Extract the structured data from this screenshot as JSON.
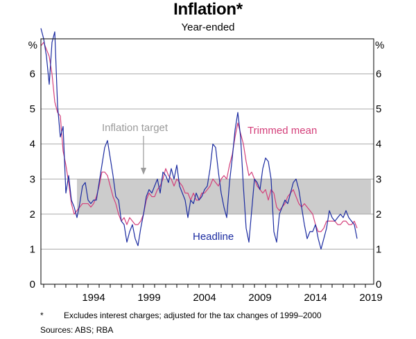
{
  "header": {
    "title": "Inflation*",
    "subtitle": "Year-ended"
  },
  "footer": {
    "footnote_marker": "*",
    "footnote_text": "Excludes interest charges; adjusted for the tax changes of 1999–2000",
    "sources": "Sources:  ABS; RBA"
  },
  "chart_data": {
    "type": "line",
    "title": "Inflation*",
    "subtitle": "Year-ended",
    "ylabel": "%",
    "ylim": [
      0,
      7
    ],
    "yticks": [
      0,
      1,
      2,
      3,
      4,
      5,
      6
    ],
    "xlim": [
      1989.75,
      2019.75
    ],
    "xticks": [
      1994,
      1999,
      2004,
      2009,
      2014,
      2019
    ],
    "grid": true,
    "target_band": {
      "low": 2,
      "high": 3,
      "start": 1993.0,
      "label": "Inflation target",
      "arrow_x": 1999.0
    },
    "annotations": {
      "trimmed_mean": "Trimmed mean",
      "headline": "Headline"
    },
    "colors": {
      "headline": "#1a2aa0",
      "trimmed": "#d43f7a",
      "band": "#cccccc",
      "grid": "#aaaaaa",
      "target_label": "#9a9a9a"
    },
    "series": [
      {
        "name": "Headline",
        "points": [
          [
            1989.75,
            7.3
          ],
          [
            1990.0,
            7.0
          ],
          [
            1990.25,
            6.5
          ],
          [
            1990.5,
            5.7
          ],
          [
            1990.75,
            6.9
          ],
          [
            1991.0,
            7.2
          ],
          [
            1991.25,
            5.1
          ],
          [
            1991.5,
            4.2
          ],
          [
            1991.75,
            4.5
          ],
          [
            1992.0,
            2.6
          ],
          [
            1992.25,
            3.1
          ],
          [
            1992.5,
            2.4
          ],
          [
            1992.75,
            2.2
          ],
          [
            1993.0,
            1.9
          ],
          [
            1993.25,
            2.3
          ],
          [
            1993.5,
            2.8
          ],
          [
            1993.75,
            2.9
          ],
          [
            1994.0,
            2.4
          ],
          [
            1994.25,
            2.3
          ],
          [
            1994.5,
            2.4
          ],
          [
            1994.75,
            2.4
          ],
          [
            1995.0,
            2.9
          ],
          [
            1995.25,
            3.4
          ],
          [
            1995.5,
            3.9
          ],
          [
            1995.75,
            4.1
          ],
          [
            1996.0,
            3.6
          ],
          [
            1996.25,
            3.1
          ],
          [
            1996.5,
            2.5
          ],
          [
            1996.75,
            2.4
          ],
          [
            1997.0,
            1.8
          ],
          [
            1997.25,
            1.7
          ],
          [
            1997.5,
            1.2
          ],
          [
            1997.75,
            1.5
          ],
          [
            1998.0,
            1.7
          ],
          [
            1998.25,
            1.3
          ],
          [
            1998.5,
            1.1
          ],
          [
            1998.75,
            1.6
          ],
          [
            1999.0,
            2.0
          ],
          [
            1999.25,
            2.5
          ],
          [
            1999.5,
            2.7
          ],
          [
            1999.75,
            2.6
          ],
          [
            2000.0,
            2.8
          ],
          [
            2000.25,
            3.0
          ],
          [
            2000.5,
            2.6
          ],
          [
            2000.75,
            3.2
          ],
          [
            2001.0,
            3.1
          ],
          [
            2001.25,
            2.9
          ],
          [
            2001.5,
            3.3
          ],
          [
            2001.75,
            3.0
          ],
          [
            2002.0,
            3.4
          ],
          [
            2002.25,
            2.8
          ],
          [
            2002.5,
            2.6
          ],
          [
            2002.75,
            2.4
          ],
          [
            2003.0,
            1.9
          ],
          [
            2003.25,
            2.4
          ],
          [
            2003.5,
            2.3
          ],
          [
            2003.75,
            2.6
          ],
          [
            2004.0,
            2.4
          ],
          [
            2004.25,
            2.5
          ],
          [
            2004.5,
            2.7
          ],
          [
            2004.75,
            2.8
          ],
          [
            2005.0,
            3.3
          ],
          [
            2005.25,
            4.0
          ],
          [
            2005.5,
            3.9
          ],
          [
            2005.75,
            3.2
          ],
          [
            2006.0,
            2.6
          ],
          [
            2006.25,
            2.2
          ],
          [
            2006.5,
            1.9
          ],
          [
            2006.75,
            2.9
          ],
          [
            2007.0,
            3.6
          ],
          [
            2007.25,
            4.4
          ],
          [
            2007.5,
            4.9
          ],
          [
            2007.75,
            4.2
          ],
          [
            2008.0,
            2.8
          ],
          [
            2008.25,
            1.6
          ],
          [
            2008.5,
            1.2
          ],
          [
            2008.75,
            2.1
          ],
          [
            2009.0,
            3.0
          ],
          [
            2009.25,
            2.9
          ],
          [
            2009.5,
            2.7
          ],
          [
            2009.75,
            3.3
          ],
          [
            2010.0,
            3.6
          ],
          [
            2010.25,
            3.5
          ],
          [
            2010.5,
            3.0
          ],
          [
            2010.75,
            1.5
          ],
          [
            2011.0,
            1.2
          ],
          [
            2011.25,
            2.0
          ],
          [
            2011.5,
            2.2
          ],
          [
            2011.75,
            2.4
          ],
          [
            2012.0,
            2.3
          ],
          [
            2012.25,
            2.6
          ],
          [
            2012.5,
            2.9
          ],
          [
            2012.75,
            3.0
          ],
          [
            2013.0,
            2.7
          ],
          [
            2013.25,
            2.2
          ],
          [
            2013.5,
            1.7
          ],
          [
            2013.75,
            1.3
          ],
          [
            2014.0,
            1.5
          ],
          [
            2014.25,
            1.5
          ],
          [
            2014.5,
            1.7
          ],
          [
            2014.75,
            1.3
          ],
          [
            2015.0,
            1.0
          ],
          [
            2015.25,
            1.3
          ],
          [
            2015.5,
            1.6
          ],
          [
            2015.75,
            2.1
          ],
          [
            2016.0,
            1.9
          ],
          [
            2016.25,
            1.8
          ],
          [
            2016.5,
            1.9
          ],
          [
            2016.75,
            2.0
          ],
          [
            2017.0,
            1.9
          ],
          [
            2017.25,
            2.1
          ],
          [
            2017.5,
            1.9
          ],
          [
            2017.75,
            1.8
          ],
          [
            2018.0,
            1.7
          ],
          [
            2018.25,
            1.3
          ]
        ]
      },
      {
        "name": "Trimmed mean",
        "points": [
          [
            1989.75,
            6.8
          ],
          [
            1990.0,
            6.9
          ],
          [
            1990.25,
            6.7
          ],
          [
            1990.5,
            6.5
          ],
          [
            1990.75,
            6.0
          ],
          [
            1991.0,
            5.2
          ],
          [
            1991.25,
            4.9
          ],
          [
            1991.5,
            4.8
          ],
          [
            1991.75,
            3.8
          ],
          [
            1992.0,
            3.4
          ],
          [
            1992.25,
            2.9
          ],
          [
            1992.5,
            2.3
          ],
          [
            1992.75,
            2.0
          ],
          [
            1993.0,
            2.1
          ],
          [
            1993.25,
            2.2
          ],
          [
            1993.5,
            2.3
          ],
          [
            1993.75,
            2.3
          ],
          [
            1994.0,
            2.3
          ],
          [
            1994.25,
            2.2
          ],
          [
            1994.5,
            2.3
          ],
          [
            1994.75,
            2.5
          ],
          [
            1995.0,
            2.8
          ],
          [
            1995.25,
            3.2
          ],
          [
            1995.5,
            3.2
          ],
          [
            1995.75,
            3.1
          ],
          [
            1996.0,
            2.8
          ],
          [
            1996.25,
            2.5
          ],
          [
            1996.5,
            2.3
          ],
          [
            1996.75,
            2.0
          ],
          [
            1997.0,
            1.8
          ],
          [
            1997.25,
            1.9
          ],
          [
            1997.5,
            1.7
          ],
          [
            1997.75,
            1.9
          ],
          [
            1998.0,
            1.8
          ],
          [
            1998.25,
            1.7
          ],
          [
            1998.5,
            1.7
          ],
          [
            1998.75,
            1.8
          ],
          [
            1999.0,
            2.0
          ],
          [
            1999.25,
            2.4
          ],
          [
            1999.5,
            2.6
          ],
          [
            1999.75,
            2.5
          ],
          [
            2000.0,
            2.5
          ],
          [
            2000.25,
            2.7
          ],
          [
            2000.5,
            2.8
          ],
          [
            2000.75,
            3.0
          ],
          [
            2001.0,
            3.3
          ],
          [
            2001.25,
            3.1
          ],
          [
            2001.5,
            3.0
          ],
          [
            2001.75,
            2.8
          ],
          [
            2002.0,
            3.0
          ],
          [
            2002.25,
            2.9
          ],
          [
            2002.5,
            2.8
          ],
          [
            2002.75,
            2.6
          ],
          [
            2003.0,
            2.6
          ],
          [
            2003.25,
            2.4
          ],
          [
            2003.5,
            2.6
          ],
          [
            2003.75,
            2.4
          ],
          [
            2004.0,
            2.4
          ],
          [
            2004.25,
            2.6
          ],
          [
            2004.5,
            2.6
          ],
          [
            2004.75,
            2.7
          ],
          [
            2005.0,
            2.8
          ],
          [
            2005.25,
            3.0
          ],
          [
            2005.5,
            2.9
          ],
          [
            2005.75,
            2.8
          ],
          [
            2006.0,
            3.0
          ],
          [
            2006.25,
            3.1
          ],
          [
            2006.5,
            3.0
          ],
          [
            2006.75,
            3.4
          ],
          [
            2007.0,
            3.7
          ],
          [
            2007.25,
            4.2
          ],
          [
            2007.5,
            4.6
          ],
          [
            2007.75,
            4.3
          ],
          [
            2008.0,
            4.0
          ],
          [
            2008.25,
            3.5
          ],
          [
            2008.5,
            3.1
          ],
          [
            2008.75,
            3.2
          ],
          [
            2009.0,
            3.0
          ],
          [
            2009.25,
            2.8
          ],
          [
            2009.5,
            2.7
          ],
          [
            2009.75,
            2.6
          ],
          [
            2010.0,
            2.7
          ],
          [
            2010.25,
            2.4
          ],
          [
            2010.5,
            2.7
          ],
          [
            2010.75,
            2.6
          ],
          [
            2011.0,
            2.2
          ],
          [
            2011.25,
            2.1
          ],
          [
            2011.5,
            2.2
          ],
          [
            2011.75,
            2.3
          ],
          [
            2012.0,
            2.5
          ],
          [
            2012.25,
            2.6
          ],
          [
            2012.5,
            2.7
          ],
          [
            2012.75,
            2.5
          ],
          [
            2013.0,
            2.3
          ],
          [
            2013.25,
            2.2
          ],
          [
            2013.5,
            2.3
          ],
          [
            2013.75,
            2.2
          ],
          [
            2014.0,
            2.1
          ],
          [
            2014.25,
            2.0
          ],
          [
            2014.5,
            1.7
          ],
          [
            2014.75,
            1.5
          ],
          [
            2015.0,
            1.5
          ],
          [
            2015.25,
            1.6
          ],
          [
            2015.5,
            1.8
          ],
          [
            2015.75,
            1.8
          ],
          [
            2016.0,
            1.8
          ],
          [
            2016.25,
            1.8
          ],
          [
            2016.5,
            1.7
          ],
          [
            2016.75,
            1.7
          ],
          [
            2017.0,
            1.8
          ],
          [
            2017.25,
            1.8
          ],
          [
            2017.5,
            1.7
          ],
          [
            2017.75,
            1.7
          ],
          [
            2018.0,
            1.8
          ],
          [
            2018.25,
            1.6
          ]
        ]
      }
    ]
  }
}
